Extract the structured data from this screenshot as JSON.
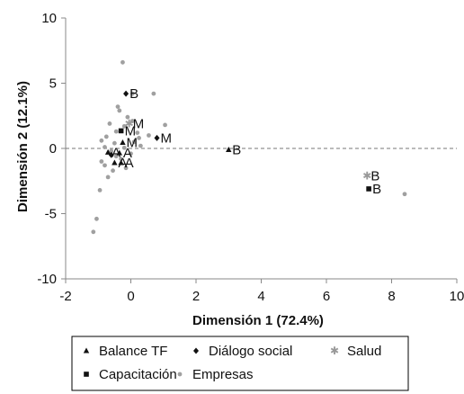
{
  "chart_data": {
    "type": "scatter",
    "title": "",
    "xlabel": "Dimensión 1 (72.4%)",
    "ylabel": "Dimensión 2 (12.1%)",
    "xlim": [
      -2,
      10
    ],
    "ylim": [
      -10,
      10
    ],
    "xticks": [
      -2,
      0,
      2,
      4,
      6,
      8,
      10
    ],
    "yticks": [
      -10,
      -5,
      0,
      5,
      10
    ],
    "grid": false,
    "reference_line": {
      "y": 0,
      "style": "dashed"
    },
    "legend_position": "bottom",
    "series": [
      {
        "name": "Balance TF",
        "marker": "triangle",
        "color": "#111111",
        "points": [
          {
            "x": -0.7,
            "y": -0.3,
            "label": "A"
          },
          {
            "x": -0.35,
            "y": -0.35,
            "label": "A"
          },
          {
            "x": -0.5,
            "y": -1.1,
            "label": "A"
          },
          {
            "x": -0.3,
            "y": -1.1,
            "label": "A"
          },
          {
            "x": -0.25,
            "y": 0.45,
            "label": "M"
          },
          {
            "x": 3.0,
            "y": -0.1,
            "label": "B"
          }
        ]
      },
      {
        "name": "Diálogo social",
        "marker": "diamond",
        "color": "#111111",
        "points": [
          {
            "x": -0.15,
            "y": 4.2,
            "label": "B"
          },
          {
            "x": 0.8,
            "y": 0.8,
            "label": "M"
          },
          {
            "x": -0.6,
            "y": -0.5,
            "label": ""
          }
        ]
      },
      {
        "name": "Salud",
        "marker": "star",
        "color": "#999999",
        "points": [
          {
            "x": -0.05,
            "y": 1.9,
            "label": "M"
          },
          {
            "x": 7.25,
            "y": -2.1,
            "label": "B"
          }
        ]
      },
      {
        "name": "Capacitación",
        "marker": "square",
        "color": "#111111",
        "points": [
          {
            "x": -0.3,
            "y": 1.35,
            "label": "M"
          },
          {
            "x": 7.3,
            "y": -3.1,
            "label": "B"
          }
        ]
      },
      {
        "name": "Empresas",
        "marker": "circle",
        "color": "#a0a0a0",
        "points": [
          {
            "x": -0.25,
            "y": 6.6
          },
          {
            "x": 0.05,
            "y": 4.2
          },
          {
            "x": 0.7,
            "y": 4.2
          },
          {
            "x": -0.4,
            "y": 3.2
          },
          {
            "x": -0.1,
            "y": 2.4
          },
          {
            "x": 0.05,
            "y": 2.1
          },
          {
            "x": -0.65,
            "y": 1.9
          },
          {
            "x": -0.2,
            "y": 1.7
          },
          {
            "x": 1.05,
            "y": 1.8
          },
          {
            "x": -0.45,
            "y": 1.3
          },
          {
            "x": 0.2,
            "y": 1.2
          },
          {
            "x": -0.75,
            "y": 0.9
          },
          {
            "x": 0.55,
            "y": 1.0
          },
          {
            "x": -0.9,
            "y": 0.6
          },
          {
            "x": -0.5,
            "y": 0.4
          },
          {
            "x": 0.1,
            "y": 0.5
          },
          {
            "x": -0.8,
            "y": 0.1
          },
          {
            "x": -0.2,
            "y": 0.05
          },
          {
            "x": 0.3,
            "y": 0.2
          },
          {
            "x": -0.6,
            "y": -0.2
          },
          {
            "x": 0.0,
            "y": -0.4
          },
          {
            "x": -0.45,
            "y": -0.6
          },
          {
            "x": -0.9,
            "y": -1.0
          },
          {
            "x": -0.3,
            "y": -0.8
          },
          {
            "x": -0.8,
            "y": -1.3
          },
          {
            "x": -0.55,
            "y": -1.7
          },
          {
            "x": -0.7,
            "y": -2.2
          },
          {
            "x": -0.95,
            "y": -3.2
          },
          {
            "x": -1.05,
            "y": -5.4
          },
          {
            "x": -1.15,
            "y": -6.4
          },
          {
            "x": 8.4,
            "y": -3.5
          },
          {
            "x": -0.35,
            "y": 2.9
          },
          {
            "x": 0.25,
            "y": 0.8
          },
          {
            "x": -0.15,
            "y": -1.5
          }
        ]
      }
    ]
  }
}
